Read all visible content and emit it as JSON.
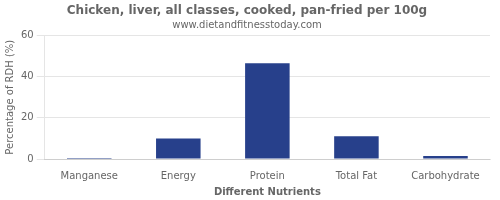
{
  "chart_data": {
    "type": "bar",
    "title": "Chicken, liver, all classes, cooked, pan-fried per 100g",
    "subtitle": "www.dietandfitnesstoday.com",
    "xlabel": "Different Nutrients",
    "ylabel": "Percentage of RDH (%)",
    "categories": [
      "Manganese",
      "Energy",
      "Protein",
      "Total Fat",
      "Carbohydrate"
    ],
    "values": [
      0.05,
      10.0,
      46.5,
      11.0,
      1.5
    ],
    "color": "#27408B",
    "ylim": [
      0,
      60
    ],
    "yticks": [
      0,
      20,
      40,
      60
    ],
    "grid": true
  }
}
